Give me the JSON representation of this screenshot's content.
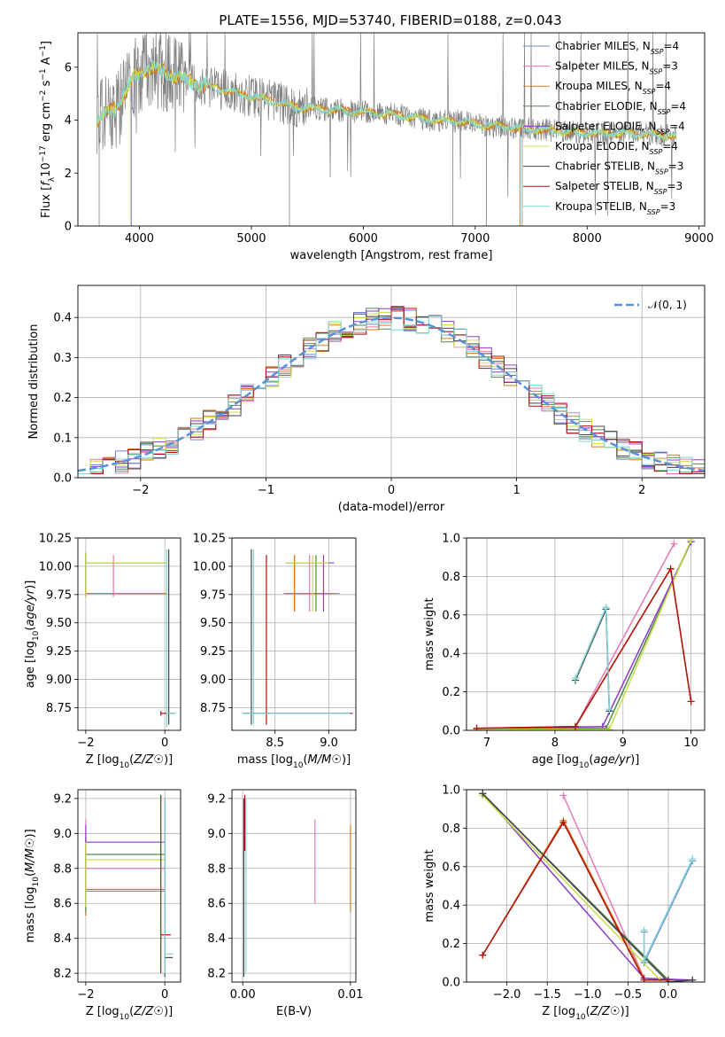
{
  "colors": {
    "Chabrier MILES": "#7183cf",
    "Salpeter MILES": "#e678b4",
    "Kroupa MILES": "#d97a1e",
    "Chabrier ELODIE": "#4e8a4e",
    "Salpeter ELODIE": "#8e3ac6",
    "Kroupa ELODIE": "#c7e046",
    "Chabrier STELIB": "#444444",
    "Salpeter STELIB": "#b01010",
    "Kroupa STELIB": "#7fd6d8",
    "data": "#7f7f7f",
    "gaussian": "#5b8fd6"
  },
  "chart_data": [
    {
      "type": "line",
      "title": "PLATE=1556, MJD=53740, FIBERID=0188, z=0.043",
      "xlabel": "wavelength [Angstrom, rest frame]",
      "ylabel": "Flux [f_λ10^{-17} erg cm^{-2} s^{-1} A^{-1}]",
      "xlim": [
        3450,
        9050
      ],
      "ylim": [
        0,
        7.3
      ],
      "xticks": [
        "4000",
        "5000",
        "6000",
        "7000",
        "8000",
        "9000"
      ],
      "yticks": [
        "0",
        "2",
        "4",
        "6"
      ],
      "legend": "top-right",
      "series": [
        {
          "name": "Chabrier MILES, N",
          "sub": "SSP",
          "suffix": "=4"
        },
        {
          "name": "Salpeter MILES, N",
          "sub": "SSP",
          "suffix": "=3"
        },
        {
          "name": "Kroupa MILES, N",
          "sub": "SSP",
          "suffix": "=4"
        },
        {
          "name": "Chabrier ELODIE, N",
          "sub": "SSP",
          "suffix": "=4"
        },
        {
          "name": "Salpeter ELODIE, N",
          "sub": "SSP",
          "suffix": "=4"
        },
        {
          "name": "Kroupa ELODIE, N",
          "sub": "SSP",
          "suffix": "=4"
        },
        {
          "name": "Chabrier STELIB, N",
          "sub": "SSP",
          "suffix": "=3"
        },
        {
          "name": "Salpeter STELIB, N",
          "sub": "SSP",
          "suffix": "=3"
        },
        {
          "name": "Kroupa STELIB, N",
          "sub": "SSP",
          "suffix": "=3"
        }
      ],
      "continuum": {
        "x": [
          3620,
          3800,
          3950,
          4100,
          4300,
          4500,
          4800,
          5100,
          5400,
          5700,
          6000,
          6300,
          6600,
          6900,
          7100,
          7400,
          7700,
          8000,
          8300,
          8600,
          8800
        ],
        "y": [
          4.0,
          4.5,
          5.6,
          6.0,
          5.7,
          5.4,
          5.1,
          4.8,
          4.5,
          4.4,
          4.3,
          4.2,
          4.0,
          3.95,
          3.8,
          3.7,
          3.6,
          3.5,
          3.5,
          3.45,
          3.4
        ]
      }
    },
    {
      "type": "histogram",
      "xlabel": "(data-model)/error",
      "ylabel": "Normed distribution",
      "xlim": [
        -2.5,
        2.5
      ],
      "ylim": [
        0,
        0.48
      ],
      "xticks": [
        "−2",
        "−1",
        "0",
        "1",
        "2"
      ],
      "yticks": [
        "0.0",
        "0.1",
        "0.2",
        "0.3",
        "0.4"
      ],
      "legend": "top-right",
      "gaussian_label": "𝒩(0, 1)",
      "grid": true,
      "bin_width": 0.1
    },
    {
      "type": "scatter",
      "xlabel": "Z [log10(Z/Z☉)]",
      "ylabel": "age  [log10(age/yr)]",
      "xlim": [
        -2.2,
        0.4
      ],
      "ylim": [
        8.55,
        10.25
      ],
      "xticks": [
        "−2",
        "0"
      ],
      "yticks": [
        "8.75",
        "9.00",
        "9.25",
        "9.50",
        "9.75",
        "10.00",
        "10.25"
      ],
      "grid": true,
      "points": [
        {
          "c": "Chabrier MILES",
          "x": -2.0,
          "y": 9.76,
          "x2": 0.05,
          "ylo": 9.73,
          "yhi": 10.12
        },
        {
          "c": "Salpeter MILES",
          "x": -1.3,
          "y": 9.76,
          "x2": 0.05,
          "ylo": 9.73,
          "yhi": 10.1
        },
        {
          "c": "Kroupa MILES",
          "x": -2.0,
          "y": 9.76,
          "x2": 0.05,
          "ylo": 9.73,
          "yhi": 10.12
        },
        {
          "c": "Chabrier ELODIE",
          "x": -2.0,
          "y": 10.03,
          "x2": 0.05,
          "ylo": 9.73,
          "yhi": 10.12
        },
        {
          "c": "Salpeter ELODIE",
          "x": -2.0,
          "y": 10.03,
          "x2": 0.05,
          "ylo": 9.73,
          "yhi": 10.12
        },
        {
          "c": "Kroupa ELODIE",
          "x": -2.0,
          "y": 10.03,
          "x2": 0.05,
          "ylo": 9.73,
          "yhi": 10.12
        },
        {
          "c": "Chabrier STELIB",
          "x": 0.1,
          "y": 8.7,
          "x2": 0.25,
          "ylo": 8.6,
          "yhi": 10.15
        },
        {
          "c": "Salpeter STELIB",
          "x": -0.1,
          "y": 8.7,
          "x2": 0.15,
          "ylo": 8.68,
          "yhi": 8.72
        },
        {
          "c": "Kroupa STELIB",
          "x": 0.05,
          "y": 8.7,
          "x2": 0.28,
          "ylo": 8.58,
          "yhi": 10.15
        }
      ]
    },
    {
      "type": "scatter",
      "xlabel": "mass [log10(M/M☉)]",
      "ylabel": "",
      "xlim": [
        8.1,
        9.25
      ],
      "ylim": [
        8.55,
        10.25
      ],
      "xticks": [
        "8.5",
        "9.0"
      ],
      "yticks": [
        "8.75",
        "9.00",
        "9.25",
        "9.50",
        "9.75",
        "10.00",
        "10.25"
      ],
      "grid": true,
      "points": [
        {
          "c": "Chabrier MILES",
          "x": 8.68,
          "y": 9.76,
          "x1": 8.58,
          "x2": 9.1,
          "ylo": 9.6,
          "yhi": 10.1
        },
        {
          "c": "Salpeter MILES",
          "x": 8.82,
          "y": 9.76,
          "x1": 8.6,
          "x2": 9.1,
          "ylo": 9.6,
          "yhi": 10.1
        },
        {
          "c": "Kroupa MILES",
          "x": 8.68,
          "y": 9.76,
          "x1": 8.58,
          "x2": 9.05,
          "ylo": 9.6,
          "yhi": 10.1
        },
        {
          "c": "Chabrier ELODIE",
          "x": 8.88,
          "y": 10.03,
          "x1": 8.6,
          "x2": 9.0,
          "ylo": 9.6,
          "yhi": 10.1
        },
        {
          "c": "Salpeter ELODIE",
          "x": 8.95,
          "y": 10.03,
          "x1": 8.6,
          "x2": 9.05,
          "ylo": 9.6,
          "yhi": 10.1
        },
        {
          "c": "Kroupa ELODIE",
          "x": 8.85,
          "y": 10.03,
          "x1": 8.6,
          "x2": 9.0,
          "ylo": 9.6,
          "yhi": 10.1
        },
        {
          "c": "Chabrier STELIB",
          "x": 8.28,
          "y": 8.7,
          "x1": 8.2,
          "x2": 9.2,
          "ylo": 8.6,
          "yhi": 10.15
        },
        {
          "c": "Salpeter STELIB",
          "x": 8.42,
          "y": 8.7,
          "x1": 8.2,
          "x2": 9.22,
          "ylo": 8.6,
          "yhi": 10.1
        },
        {
          "c": "Kroupa STELIB",
          "x": 8.3,
          "y": 8.7,
          "x1": 8.2,
          "x2": 9.2,
          "ylo": 8.6,
          "yhi": 10.15
        }
      ]
    },
    {
      "type": "line",
      "xlabel": "age  [log10(age/yr)]",
      "ylabel": "mass weight",
      "xlim": [
        6.7,
        10.2
      ],
      "ylim": [
        0,
        1.0
      ],
      "xticks": [
        "7",
        "8",
        "9",
        "10"
      ],
      "yticks": [
        "0.0",
        "0.2",
        "0.4",
        "0.6",
        "0.8",
        "1.0"
      ],
      "grid": true,
      "series": [
        {
          "c": "Chabrier MILES",
          "x": [
            8.3,
            8.75,
            8.8
          ],
          "y": [
            0.26,
            0.63,
            0.1
          ]
        },
        {
          "c": "Salpeter MILES",
          "x": [
            6.85,
            8.3,
            9.75
          ],
          "y": [
            0.01,
            0.02,
            0.97
          ]
        },
        {
          "c": "Kroupa MILES",
          "x": [
            6.85,
            8.3,
            9.7,
            10.0
          ],
          "y": [
            0.01,
            0.02,
            0.84,
            0.15
          ]
        },
        {
          "c": "Chabrier ELODIE",
          "x": [
            6.85,
            8.75,
            10.0
          ],
          "y": [
            0.01,
            0.01,
            0.98
          ]
        },
        {
          "c": "Salpeter ELODIE",
          "x": [
            6.85,
            8.7,
            10.0
          ],
          "y": [
            0.01,
            0.02,
            0.98
          ]
        },
        {
          "c": "Kroupa ELODIE",
          "x": [
            6.85,
            8.8,
            10.0
          ],
          "y": [
            0.005,
            0.005,
            0.99
          ]
        },
        {
          "c": "Chabrier STELIB",
          "x": [
            8.3,
            8.75,
            8.8
          ],
          "y": [
            0.26,
            0.63,
            0.1
          ]
        },
        {
          "c": "Salpeter STELIB",
          "x": [
            6.85,
            8.3,
            9.7,
            10.0
          ],
          "y": [
            0.01,
            0.02,
            0.84,
            0.15
          ]
        },
        {
          "c": "Kroupa STELIB",
          "x": [
            8.3,
            8.75,
            8.8
          ],
          "y": [
            0.27,
            0.64,
            0.11
          ]
        }
      ]
    },
    {
      "type": "scatter",
      "xlabel": "Z [log10(Z/Z☉)]",
      "ylabel": "mass [log10(M/M☉)]",
      "xlim": [
        -2.2,
        0.4
      ],
      "ylim": [
        8.15,
        9.25
      ],
      "xticks": [
        "−2",
        "0"
      ],
      "yticks": [
        "8.2",
        "8.4",
        "8.6",
        "8.8",
        "9.0",
        "9.2"
      ],
      "grid": true,
      "points": [
        {
          "c": "Chabrier MILES",
          "x": -2.0,
          "y": 8.68,
          "x2": 0.0,
          "ylo": 8.53,
          "yhi": 8.98
        },
        {
          "c": "Salpeter MILES",
          "x": -2.0,
          "y": 8.8,
          "x2": 0.0,
          "ylo": 8.6,
          "yhi": 9.08
        },
        {
          "c": "Kroupa MILES",
          "x": -2.0,
          "y": 8.67,
          "x2": 0.0,
          "ylo": 8.53,
          "yhi": 9.0
        },
        {
          "c": "Chabrier ELODIE",
          "x": -2.0,
          "y": 8.88,
          "x2": 0.0,
          "ylo": 8.55,
          "yhi": 8.98
        },
        {
          "c": "Salpeter ELODIE",
          "x": -2.0,
          "y": 8.95,
          "x2": 0.0,
          "ylo": 8.6,
          "yhi": 9.05
        },
        {
          "c": "Kroupa ELODIE",
          "x": -2.0,
          "y": 8.85,
          "x2": 0.0,
          "ylo": 8.58,
          "yhi": 8.95
        },
        {
          "c": "Chabrier STELIB",
          "x": 0.0,
          "y": 8.29,
          "x2": 0.2,
          "ylo": 8.18,
          "yhi": 9.2
        },
        {
          "c": "Salpeter STELIB",
          "x": -0.1,
          "y": 8.42,
          "x2": 0.15,
          "ylo": 8.2,
          "yhi": 9.22
        },
        {
          "c": "Kroupa STELIB",
          "x": 0.0,
          "y": 8.31,
          "x2": 0.22,
          "ylo": 8.2,
          "yhi": 9.2
        }
      ]
    },
    {
      "type": "scatter",
      "xlabel": "E(B-V)",
      "ylabel": "",
      "xlim": [
        -0.001,
        0.0105
      ],
      "ylim": [
        8.15,
        9.25
      ],
      "xticks": [
        "0.00",
        "0.01"
      ],
      "yticks": [
        "8.2",
        "8.4",
        "8.6",
        "8.8",
        "9.0",
        "9.2"
      ],
      "grid": true,
      "points": [
        {
          "c": "Salpeter MILES",
          "x": 0.0067,
          "ylo": 8.6,
          "yhi": 9.08
        },
        {
          "c": "Kroupa MILES",
          "x": 0.01,
          "ylo": 8.55,
          "yhi": 9.05
        },
        {
          "c": "Chabrier STELIB",
          "x": 0.0001,
          "ylo": 8.18,
          "yhi": 9.2
        },
        {
          "c": "Salpeter STELIB",
          "x": 0.0002,
          "ylo": 8.9,
          "yhi": 9.22
        },
        {
          "c": "Kroupa STELIB",
          "x": 0.0003,
          "ylo": 8.2,
          "yhi": 9.2
        }
      ]
    },
    {
      "type": "line",
      "xlabel": "Z [log10(Z/Z☉)]",
      "ylabel": "mass weight",
      "xlim": [
        -2.5,
        0.45
      ],
      "ylim": [
        0,
        1.0
      ],
      "xticks": [
        "−2.0",
        "−1.5",
        "−1.0",
        "−0.5",
        "0.0"
      ],
      "yticks": [
        "0.0",
        "0.2",
        "0.4",
        "0.6",
        "0.8",
        "1.0"
      ],
      "grid": true,
      "series": [
        {
          "c": "Chabrier MILES",
          "x": [
            -0.3,
            -0.3,
            0.3
          ],
          "y": [
            0.26,
            0.1,
            0.63
          ]
        },
        {
          "c": "Salpeter MILES",
          "x": [
            -1.3,
            -0.3,
            0.0
          ],
          "y": [
            0.97,
            0.02,
            0.01
          ]
        },
        {
          "c": "Kroupa MILES",
          "x": [
            -2.3,
            -1.3,
            -0.3,
            0.0
          ],
          "y": [
            0.14,
            0.84,
            0.02,
            0.01
          ]
        },
        {
          "c": "Chabrier ELODIE",
          "x": [
            -2.3,
            0.0,
            0.3
          ],
          "y": [
            0.98,
            0.01,
            0.01
          ]
        },
        {
          "c": "Salpeter ELODIE",
          "x": [
            -2.3,
            -0.3,
            0.3
          ],
          "y": [
            0.98,
            0.02,
            0.01
          ]
        },
        {
          "c": "Kroupa ELODIE",
          "x": [
            -2.3,
            -0.1,
            0.0
          ],
          "y": [
            0.97,
            0.01,
            0.01
          ]
        },
        {
          "c": "Chabrier STELIB",
          "x": [
            -2.3,
            0.0,
            0.3
          ],
          "y": [
            0.98,
            0.0,
            0.01
          ]
        },
        {
          "c": "Salpeter STELIB",
          "x": [
            -2.3,
            -1.3,
            -0.3,
            0.0
          ],
          "y": [
            0.14,
            0.83,
            0.01,
            0.01
          ]
        },
        {
          "c": "Kroupa STELIB",
          "x": [
            -0.3,
            -0.3,
            0.3
          ],
          "y": [
            0.27,
            0.11,
            0.64
          ]
        }
      ]
    }
  ]
}
